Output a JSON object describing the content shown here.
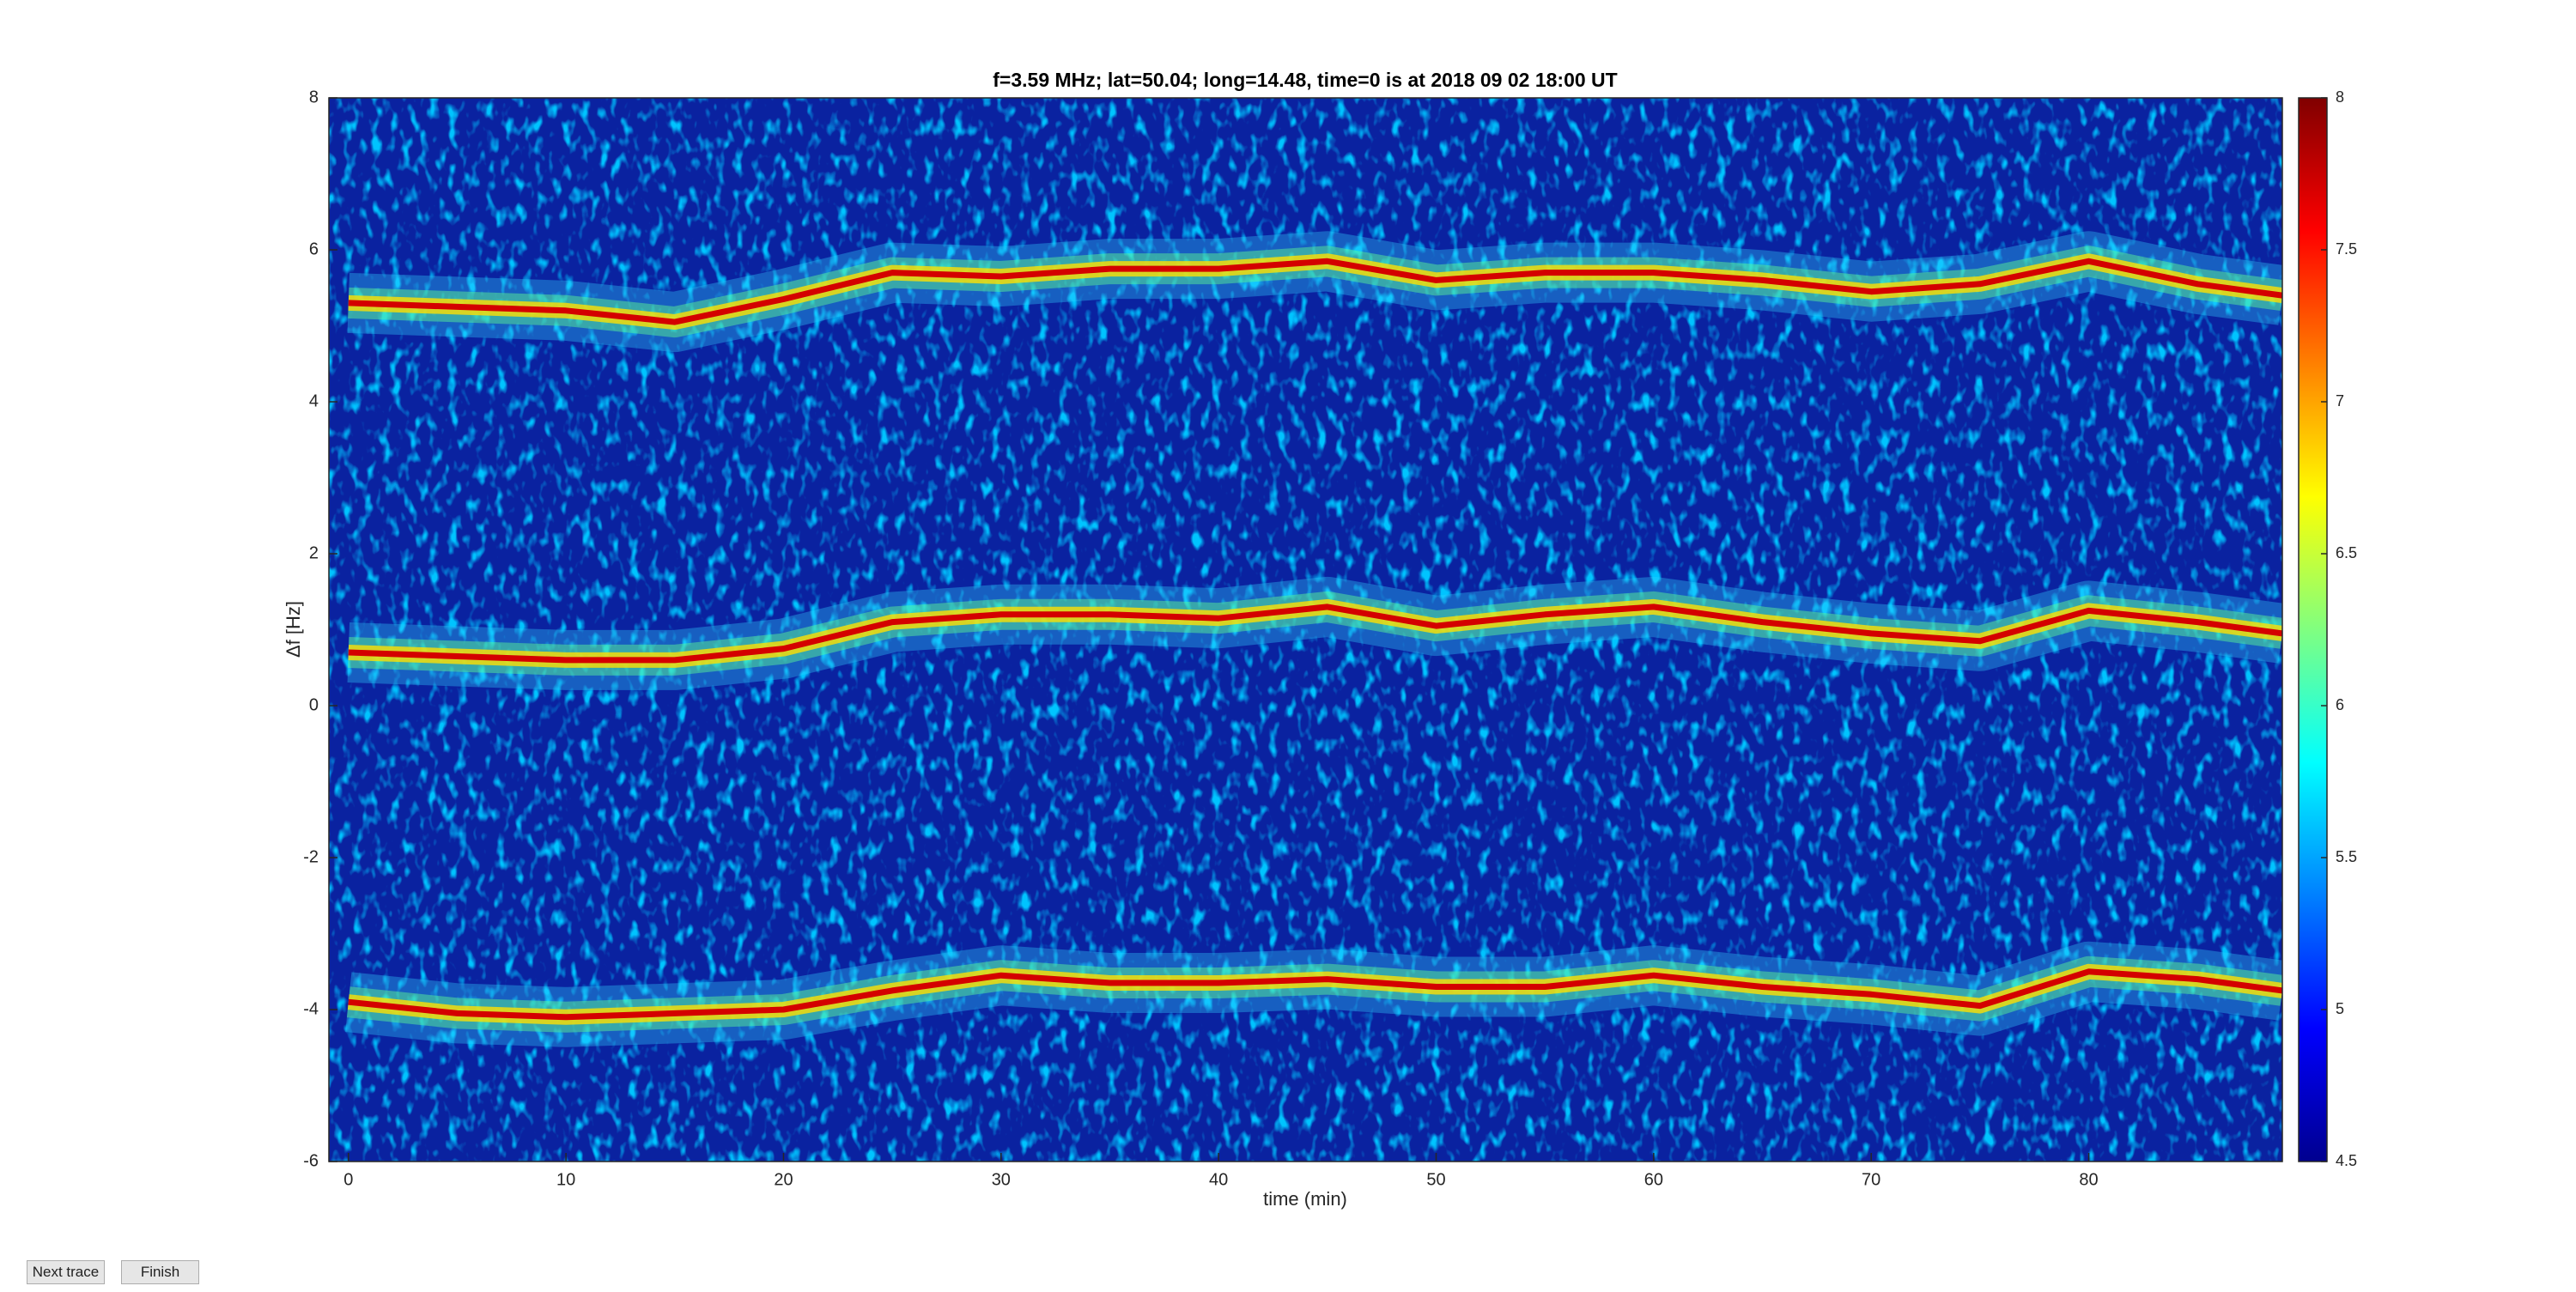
{
  "chart_data": {
    "type": "spectrogram",
    "title": "f=3.59 MHz;  lat=50.04; long=14.48, time=0 is at 2018 09 02 18:00 UT",
    "x_label": "time (min)",
    "y_label": "Δf [Hz]",
    "x": [
      0,
      5,
      10,
      15,
      20,
      25,
      30,
      35,
      40,
      45,
      50,
      55,
      60,
      65,
      70,
      75,
      80,
      85,
      88.9
    ],
    "series": [
      {
        "color": "#d40000",
        "values": [
          5.3,
          5.25,
          5.2,
          5.05,
          5.35,
          5.7,
          5.65,
          5.75,
          5.75,
          5.85,
          5.6,
          5.7,
          5.7,
          5.6,
          5.45,
          5.55,
          5.85,
          5.55,
          5.4
        ]
      },
      {
        "color": "#d40000",
        "values": [
          0.7,
          0.65,
          0.6,
          0.6,
          0.75,
          1.1,
          1.2,
          1.2,
          1.15,
          1.3,
          1.05,
          1.2,
          1.3,
          1.1,
          0.95,
          0.85,
          1.25,
          1.1,
          0.95
        ]
      },
      {
        "color": "#d40000",
        "values": [
          -3.9,
          -4.05,
          -4.1,
          -4.05,
          -4.0,
          -3.75,
          -3.55,
          -3.65,
          -3.65,
          -3.6,
          -3.7,
          -3.7,
          -3.55,
          -3.7,
          -3.8,
          -3.95,
          -3.5,
          -3.6,
          -3.75
        ]
      }
    ],
    "xlim": [
      -0.9,
      88.9
    ],
    "xticks": [
      0,
      10,
      20,
      30,
      40,
      50,
      60,
      70,
      80
    ],
    "ylim": [
      -6,
      8
    ],
    "yticks": [
      -6,
      -4,
      -2,
      0,
      2,
      4,
      6,
      8
    ],
    "colorbar": {
      "lim": [
        4.5,
        8
      ],
      "ticks": [
        4.5,
        5,
        5.5,
        6,
        6.5,
        7,
        7.5,
        8
      ],
      "colormap": [
        "#00008f",
        "#0000ff",
        "#0080ff",
        "#00ffff",
        "#80ff80",
        "#ffff00",
        "#ff8000",
        "#ff0000",
        "#800000"
      ]
    },
    "background": "#0a22a0"
  },
  "buttons": [
    "Next trace",
    "Finish"
  ]
}
